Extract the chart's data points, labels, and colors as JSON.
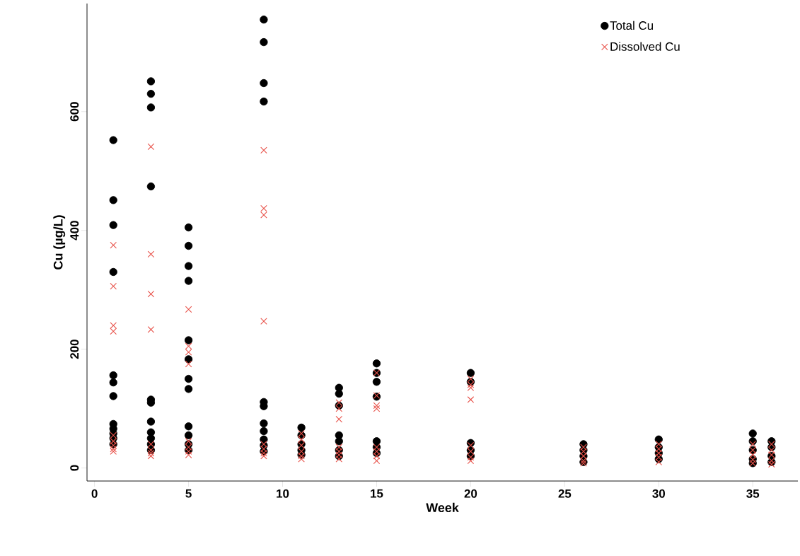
{
  "chart_data": {
    "type": "scatter",
    "xlabel": "Week",
    "ylabel": "Cu (µg/L)",
    "xlim": [
      -0.4,
      37.4
    ],
    "ylim": [
      -22,
      782
    ],
    "xticks": [
      0,
      5,
      10,
      15,
      20,
      25,
      30,
      35
    ],
    "yticks": [
      0,
      200,
      400,
      600
    ],
    "grid": false,
    "legend": "top right",
    "series": [
      {
        "name": "Total Cu",
        "color": "#000000",
        "marker": "circle",
        "x": [
          1,
          1,
          1,
          1,
          1,
          1,
          1,
          1,
          1,
          1,
          1,
          1,
          3,
          3,
          3,
          3,
          3,
          3,
          3,
          3,
          3,
          3,
          3,
          5,
          5,
          5,
          5,
          5,
          5,
          5,
          5,
          5,
          5,
          5,
          5,
          9,
          9,
          9,
          9,
          9,
          9,
          9,
          9,
          9,
          9,
          9,
          11,
          11,
          11,
          11,
          11,
          13,
          13,
          13,
          13,
          13,
          13,
          13,
          15,
          15,
          15,
          15,
          15,
          15,
          15,
          20,
          20,
          20,
          20,
          20,
          26,
          26,
          26,
          26,
          30,
          30,
          30,
          30,
          35,
          35,
          35,
          35,
          35,
          36,
          36,
          36,
          36
        ],
        "values": [
          552,
          451,
          409,
          330,
          156,
          144,
          121,
          74,
          66,
          58,
          50,
          40,
          651,
          630,
          607,
          474,
          115,
          110,
          78,
          60,
          50,
          40,
          30,
          405,
          374,
          340,
          315,
          215,
          183,
          150,
          133,
          70,
          55,
          40,
          30,
          755,
          717,
          648,
          617,
          111,
          104,
          75,
          62,
          48,
          38,
          28,
          68,
          55,
          40,
          30,
          22,
          135,
          125,
          105,
          55,
          45,
          30,
          20,
          176,
          160,
          145,
          120,
          45,
          35,
          25,
          160,
          145,
          42,
          30,
          20,
          40,
          30,
          20,
          10,
          48,
          35,
          25,
          15,
          58,
          45,
          30,
          15,
          8,
          45,
          35,
          20,
          10
        ]
      },
      {
        "name": "Dissolved Cu",
        "color": "#e8524a",
        "marker": "cross",
        "x": [
          1,
          1,
          1,
          1,
          1,
          1,
          1,
          1,
          1,
          3,
          3,
          3,
          3,
          3,
          3,
          3,
          3,
          5,
          5,
          5,
          5,
          5,
          5,
          5,
          5,
          9,
          9,
          9,
          9,
          9,
          9,
          9,
          9,
          11,
          11,
          11,
          11,
          11,
          11,
          13,
          13,
          13,
          13,
          13,
          13,
          13,
          15,
          15,
          15,
          15,
          15,
          15,
          15,
          15,
          20,
          20,
          20,
          20,
          20,
          20,
          20,
          20,
          26,
          26,
          26,
          26,
          26,
          30,
          30,
          30,
          30,
          30,
          35,
          35,
          35,
          35,
          35,
          36,
          36,
          36,
          36,
          36
        ],
        "values": [
          375,
          306,
          240,
          230,
          55,
          45,
          38,
          32,
          28,
          541,
          360,
          293,
          233,
          40,
          30,
          25,
          20,
          267,
          205,
          195,
          175,
          45,
          35,
          28,
          22,
          535,
          437,
          426,
          247,
          40,
          32,
          25,
          20,
          58,
          48,
          38,
          28,
          20,
          15,
          110,
          100,
          82,
          35,
          28,
          22,
          15,
          160,
          122,
          105,
          100,
          35,
          28,
          20,
          12,
          150,
          140,
          135,
          115,
          38,
          28,
          18,
          12,
          35,
          28,
          20,
          12,
          8,
          40,
          32,
          25,
          18,
          10,
          40,
          30,
          22,
          14,
          8,
          40,
          30,
          22,
          12,
          6
        ]
      }
    ]
  }
}
